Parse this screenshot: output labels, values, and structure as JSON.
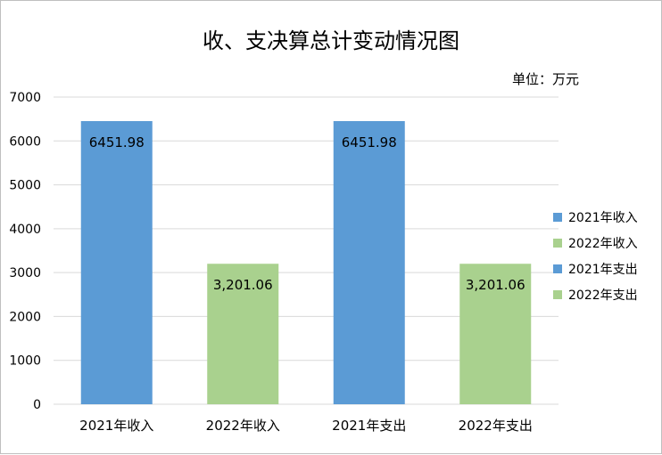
{
  "chart_data": {
    "type": "bar",
    "title": "收、支决算总计变动情况图",
    "unit_note": "单位：万元",
    "categories": [
      "2021年收入",
      "2022年收入",
      "2021年支出",
      "2022年支出"
    ],
    "values": [
      6451.98,
      3201.06,
      6451.98,
      3201.06
    ],
    "value_labels": [
      "6451.98",
      "3,201.06",
      "6451.98",
      "3,201.06"
    ],
    "bar_colors": [
      "#5b9bd5",
      "#a9d18e",
      "#5b9bd5",
      "#a9d18e"
    ],
    "ylim": [
      0,
      7000
    ],
    "yticks": [
      0,
      1000,
      2000,
      3000,
      4000,
      5000,
      6000,
      7000
    ],
    "grid": true,
    "legend_position": "right",
    "legend": [
      {
        "label": "2021年收入",
        "color": "#5b9bd5"
      },
      {
        "label": "2022年收入",
        "color": "#a9d18e"
      },
      {
        "label": "2021年支出",
        "color": "#5b9bd5"
      },
      {
        "label": "2022年支出",
        "color": "#a9d18e"
      }
    ]
  }
}
